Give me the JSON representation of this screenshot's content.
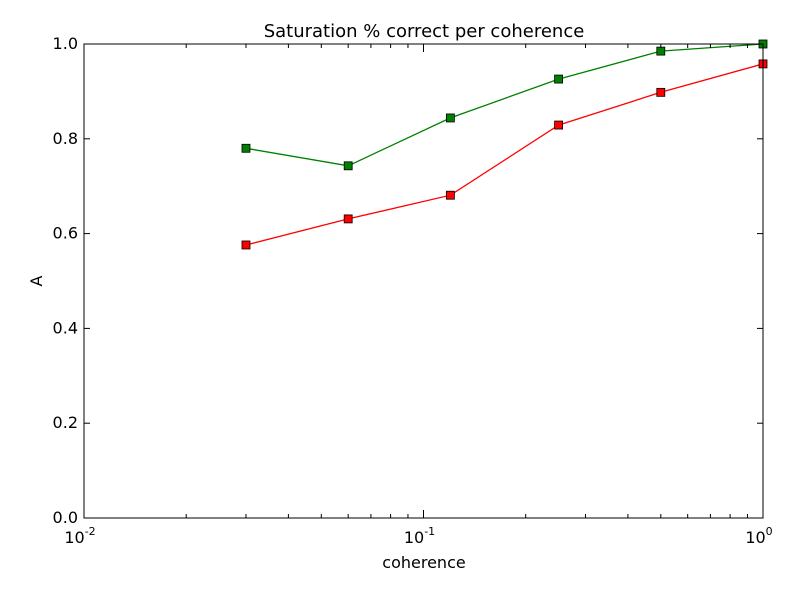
{
  "chart_data": {
    "type": "line",
    "title": "Saturation % correct per coherence",
    "xlabel": "coherence",
    "ylabel": "A",
    "x_scale": "log",
    "xlim": [
      0.01,
      1
    ],
    "ylim": [
      0.0,
      1.0
    ],
    "grid": false,
    "x_ticks": [
      {
        "value": 0.01,
        "base": "10",
        "exp": "-2"
      },
      {
        "value": 0.1,
        "base": "10",
        "exp": "-1"
      },
      {
        "value": 1,
        "base": "10",
        "exp": "0"
      }
    ],
    "y_ticks": [
      {
        "value": 0.0,
        "label": "0.0"
      },
      {
        "value": 0.2,
        "label": "0.2"
      },
      {
        "value": 0.4,
        "label": "0.4"
      },
      {
        "value": 0.6,
        "label": "0.6"
      },
      {
        "value": 0.8,
        "label": "0.8"
      },
      {
        "value": 1.0,
        "label": "1.0"
      }
    ],
    "x": [
      0.03,
      0.06,
      0.12,
      0.25,
      0.5,
      1.0
    ],
    "series": [
      {
        "color": "#008000",
        "marker": "square",
        "values": [
          0.78,
          0.743,
          0.844,
          0.926,
          0.985,
          1.0
        ]
      },
      {
        "color": "#ff0000",
        "marker": "square",
        "values": [
          0.576,
          0.631,
          0.681,
          0.829,
          0.898,
          0.958
        ]
      }
    ]
  }
}
